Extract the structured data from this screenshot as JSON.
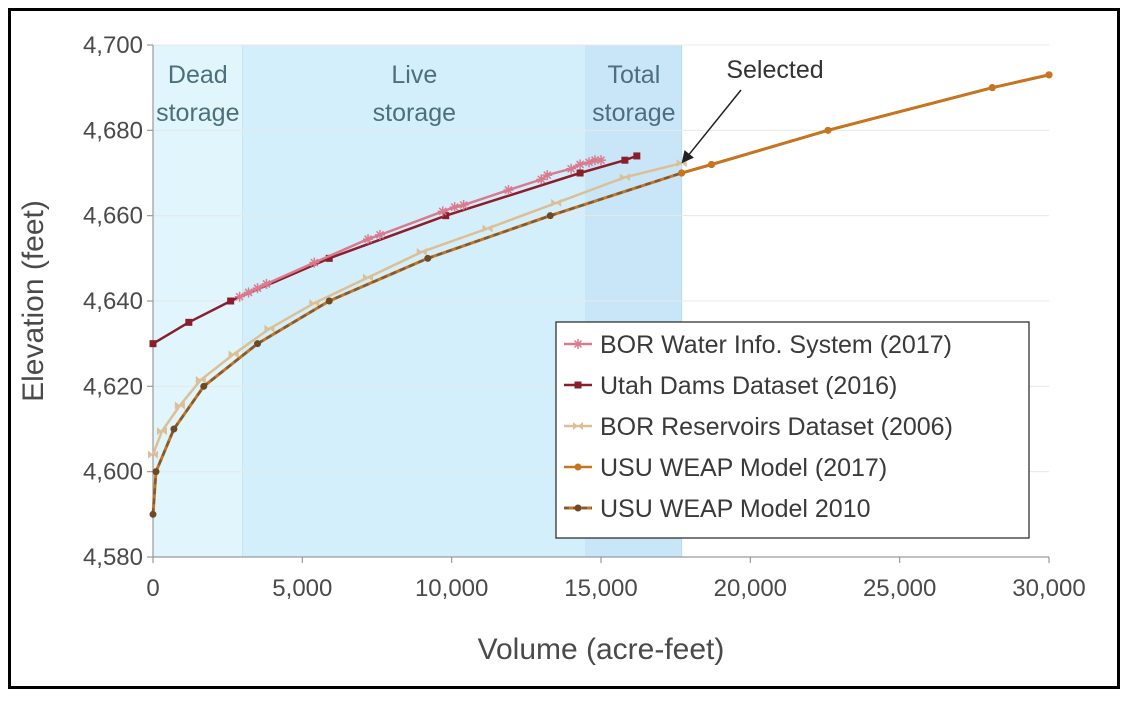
{
  "chart_data": {
    "type": "line",
    "xlabel": "Volume (acre-feet)",
    "ylabel": "Elevation (feet)",
    "xlim": [
      0,
      30000
    ],
    "ylim": [
      4580,
      4700
    ],
    "xticks": [
      0,
      5000,
      10000,
      15000,
      20000,
      25000,
      30000
    ],
    "xtick_labels": [
      "0",
      "5,000",
      "10,000",
      "15,000",
      "20,000",
      "25,000",
      "30,000"
    ],
    "yticks": [
      4580,
      4600,
      4620,
      4640,
      4660,
      4680,
      4700
    ],
    "ytick_labels": [
      "4,580",
      "4,600",
      "4,620",
      "4,640",
      "4,660",
      "4,680",
      "4,700"
    ],
    "grid": "horizontal",
    "legend_position": "lower-right",
    "regions": [
      {
        "label_lines": [
          "Dead",
          "storage"
        ],
        "x_range": [
          0,
          3000
        ],
        "color": "#e0f5fc"
      },
      {
        "label_lines": [
          "Live",
          "storage"
        ],
        "x_range": [
          3000,
          14500
        ],
        "color": "#d3effb"
      },
      {
        "label_lines": [
          "Total",
          "storage"
        ],
        "x_range": [
          14500,
          17700
        ],
        "color": "#c8e6f8"
      }
    ],
    "annotations": [
      {
        "text": "Selected",
        "arrow_to": {
          "x": 17700,
          "y": 4672.3
        }
      }
    ],
    "series": [
      {
        "name": "BOR Water Info. System (2017)",
        "color": "#d97b8f",
        "marker": "star",
        "x": [
          2900,
          3200,
          3500,
          3800,
          5400,
          7200,
          7600,
          9700,
          10100,
          10400,
          11900,
          13000,
          13200,
          14000,
          14300,
          14600,
          14800,
          15000
        ],
        "y": [
          4641,
          4642,
          4643,
          4644,
          4649,
          4654.5,
          4655.5,
          4661,
          4662,
          4662.5,
          4666,
          4668.5,
          4669.5,
          4671,
          4672,
          4672.5,
          4673,
          4673
        ]
      },
      {
        "name": "Utah Dams Dataset (2016)",
        "color": "#8b1e2c",
        "marker": "square",
        "x": [
          0,
          1200,
          2600,
          5900,
          9800,
          14300,
          15800,
          16200
        ],
        "y": [
          4630,
          4635,
          4640,
          4650,
          4660,
          4670,
          4673,
          4674
        ]
      },
      {
        "name": "BOR Reservoirs Dataset (2006)",
        "color": "#dcbf95",
        "marker": "bowtie",
        "x": [
          0,
          300,
          900,
          1600,
          2700,
          3900,
          5400,
          7200,
          9000,
          11200,
          13500,
          15800,
          17700
        ],
        "y": [
          4604,
          4609.5,
          4615.5,
          4621.5,
          4627.5,
          4633.5,
          4639.5,
          4645.5,
          4651.5,
          4657,
          4663,
          4669,
          4672.3
        ]
      },
      {
        "name": "USU WEAP Model (2017)",
        "color": "#c8751e",
        "marker": "circle",
        "x": [
          17700,
          18700,
          22600,
          28100,
          30000
        ],
        "y": [
          4670,
          4672,
          4680,
          4690,
          4693
        ]
      },
      {
        "name": "USU WEAP Model 2010",
        "color": "#7a5c3a",
        "marker": "circle-dashed",
        "x": [
          0,
          100,
          700,
          1700,
          3500,
          5900,
          9200,
          13300,
          17700,
          18700,
          22600,
          28100,
          30000
        ],
        "y": [
          4590,
          4600,
          4610,
          4620,
          4630,
          4640,
          4650,
          4660,
          4670,
          4672,
          4680,
          4690,
          4693
        ]
      }
    ]
  }
}
